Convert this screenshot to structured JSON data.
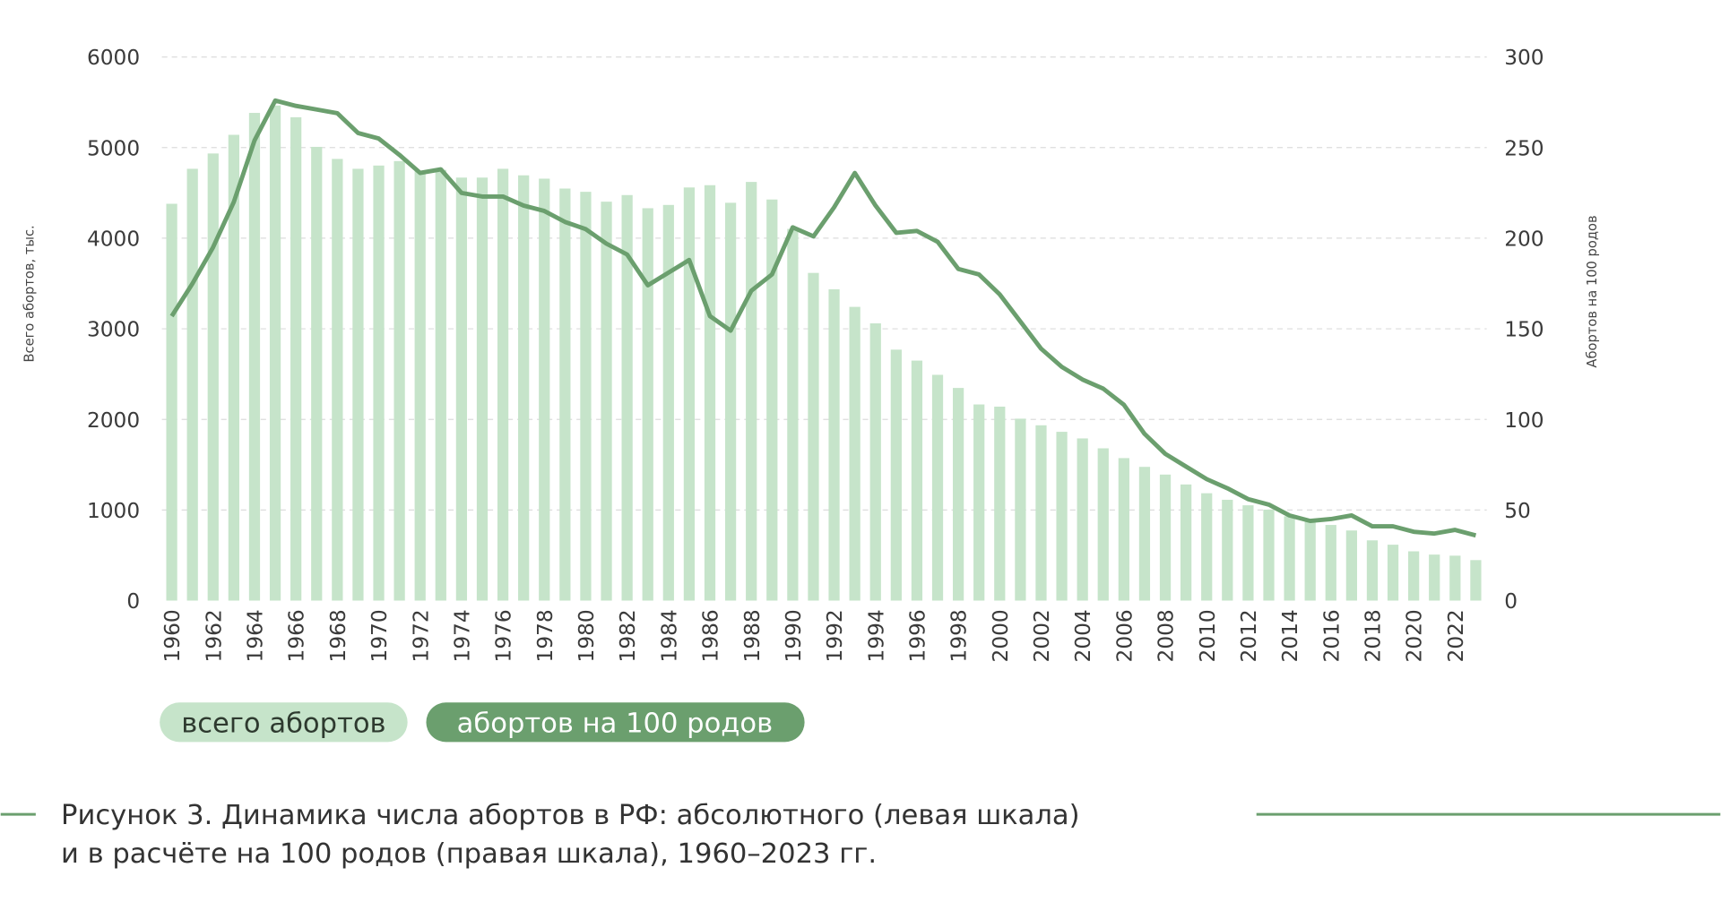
{
  "chart_data": {
    "type": "bar+line",
    "title": "",
    "caption_lines": [
      "Рисунок 3. Динамика числа абортов в РФ: абсолютного (левая шкала)",
      "и в расчёте на 100 родов (правая шкала), 1960–2023 гг."
    ],
    "ylabel": "Всего абортов, тыс.",
    "y2label": "Абортов на 100 родов",
    "ylim": [
      0,
      6000
    ],
    "y2lim": [
      0,
      300
    ],
    "yticks": [
      0,
      1000,
      2000,
      3000,
      4000,
      5000,
      6000
    ],
    "y2ticks": [
      0,
      50,
      100,
      150,
      200,
      250,
      300
    ],
    "grid": true,
    "legend_position": "bottom-left",
    "x": [
      1960,
      1961,
      1962,
      1963,
      1964,
      1965,
      1966,
      1967,
      1968,
      1969,
      1970,
      1971,
      1972,
      1973,
      1974,
      1975,
      1976,
      1977,
      1978,
      1979,
      1980,
      1981,
      1982,
      1983,
      1984,
      1985,
      1986,
      1987,
      1988,
      1989,
      1990,
      1991,
      1992,
      1993,
      1994,
      1995,
      1996,
      1997,
      1998,
      1999,
      2000,
      2001,
      2002,
      2003,
      2004,
      2005,
      2006,
      2007,
      2008,
      2009,
      2010,
      2011,
      2012,
      2013,
      2014,
      2015,
      2016,
      2017,
      2018,
      2019,
      2020,
      2021,
      2022,
      2023
    ],
    "xtick_labels": [
      "1960",
      "1962",
      "1964",
      "1966",
      "1968",
      "1970",
      "1972",
      "1974",
      "1976",
      "1978",
      "1980",
      "1982",
      "1984",
      "1986",
      "1988",
      "1990",
      "1992",
      "1994",
      "1996",
      "1998",
      "2000",
      "2002",
      "2004",
      "2006",
      "2008",
      "2010",
      "2012",
      "2014",
      "2016",
      "2018",
      "2020",
      "2022"
    ],
    "series": [
      {
        "name": "всего абортов",
        "type": "bar",
        "axis": "left",
        "color": "#c6e4ca",
        "values": [
          4380,
          4766,
          4935,
          5141,
          5383,
          5464,
          5335,
          5008,
          4875,
          4766,
          4802,
          4851,
          4742,
          4754,
          4669,
          4669,
          4766,
          4694,
          4657,
          4548,
          4512,
          4403,
          4476,
          4331,
          4367,
          4560,
          4585,
          4391,
          4621,
          4427,
          4103,
          3617,
          3436,
          3242,
          3060,
          2770,
          2649,
          2492,
          2347,
          2165,
          2141,
          2008,
          1935,
          1863,
          1790,
          1681,
          1573,
          1476,
          1391,
          1282,
          1185,
          1113,
          1052,
          1004,
          931,
          871,
          835,
          774,
          665,
          617,
          544,
          508,
          496,
          447
        ]
      },
      {
        "name": "абортов на 100 родов",
        "type": "line",
        "axis": "right",
        "color": "#6b9f6e",
        "values": [
          157,
          175,
          195,
          220,
          254,
          276,
          273,
          271,
          269,
          258,
          255,
          246,
          236,
          238,
          225,
          223,
          223,
          218,
          215,
          209,
          205,
          197,
          191,
          174,
          181,
          188,
          157,
          149,
          171,
          180,
          206,
          201,
          217,
          236,
          218,
          203,
          204,
          198,
          183,
          180,
          169,
          154,
          139,
          129,
          122,
          117,
          108,
          92,
          81,
          74,
          67,
          62,
          56,
          53,
          47,
          44,
          45,
          47,
          41,
          41,
          38,
          37,
          39,
          36
        ]
      }
    ]
  }
}
